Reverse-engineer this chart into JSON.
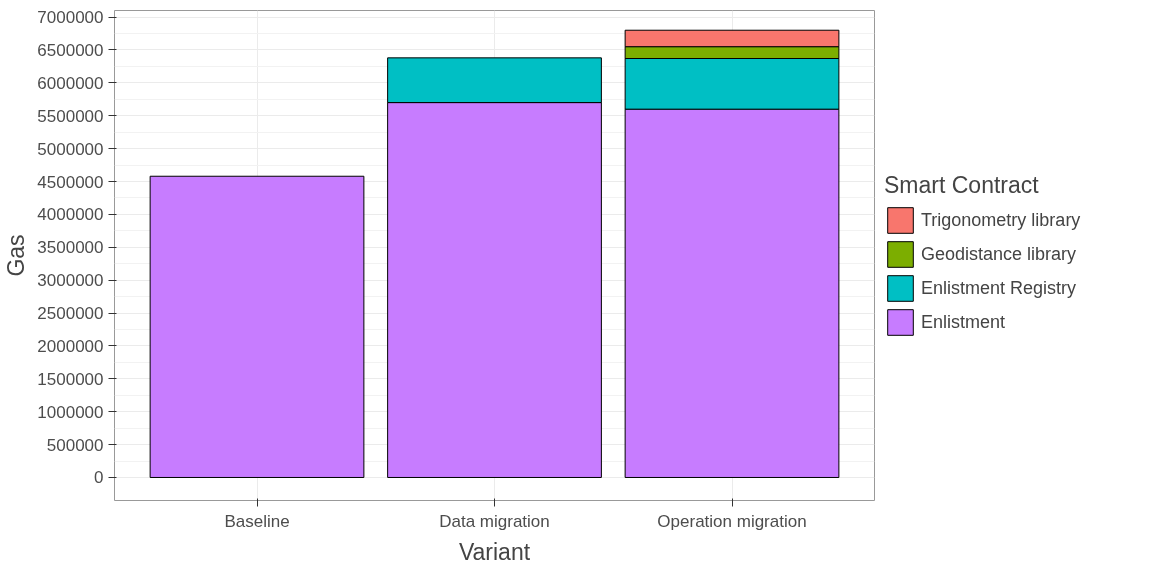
{
  "chart_data": {
    "type": "bar",
    "stacked": true,
    "xlabel": "Variant",
    "ylabel": "Gas",
    "legend_title": "Smart Contract",
    "categories": [
      "Baseline",
      "Data migration",
      "Operation migration"
    ],
    "series": [
      {
        "name": "Enlistment",
        "color": "#c77cff",
        "values": [
          4580000,
          5700000,
          5600000
        ]
      },
      {
        "name": "Enlistment Registry",
        "color": "#00bfc4",
        "values": [
          null,
          680000,
          770000
        ]
      },
      {
        "name": "Geodistance library",
        "color": "#7cae00",
        "values": [
          null,
          null,
          180000
        ]
      },
      {
        "name": "Trigonometry library",
        "color": "#f8766d",
        "values": [
          null,
          null,
          250000
        ]
      }
    ],
    "ylim": [
      -350000,
      7100000
    ],
    "yticks": [
      0,
      500000,
      1000000,
      1500000,
      2000000,
      2500000,
      3000000,
      3500000,
      4000000,
      4500000,
      5000000,
      5500000,
      6000000,
      6500000,
      7000000
    ],
    "grid": true,
    "legend": "right"
  }
}
